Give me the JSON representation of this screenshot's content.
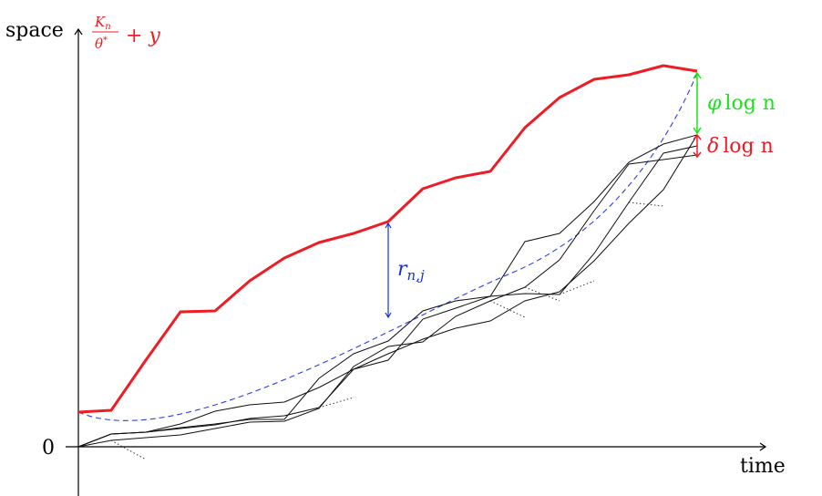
{
  "axes": {
    "y_label": "space",
    "x_label": "time",
    "origin_label": "0"
  },
  "top_curve": {
    "label_fraction_num": "K",
    "label_fraction_num_sub": "n",
    "label_fraction_den": "θ",
    "label_fraction_den_sup": "*",
    "label_suffix": "+ y",
    "color": "#ee1c24"
  },
  "dashed_curve": {
    "color": "#2b3fe0"
  },
  "gap_r": {
    "label": "r",
    "label_sub": "n,j",
    "color": "#1530d8"
  },
  "gap_phi": {
    "label_symbol": "φ",
    "label_rest": "log n",
    "color": "#17e617"
  },
  "gap_delta": {
    "label_symbol": "δ",
    "label_rest": "log n",
    "color": "#ee1c24"
  },
  "paths": {
    "color": "#111111",
    "dotted_color": "#333333"
  }
}
